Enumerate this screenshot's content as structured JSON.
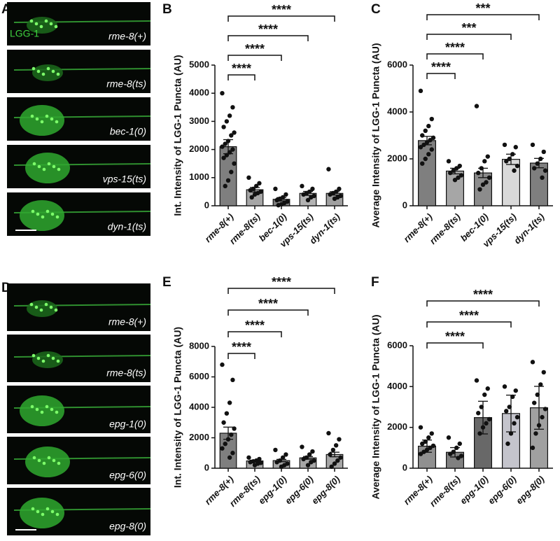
{
  "image_panels": [
    {
      "label": "A",
      "marker_label": "LGG-1",
      "captions": [
        "rme-8(+)",
        "rme-8(ts)",
        "bec-1(0)",
        "vps-15(ts)",
        "dyn-1(ts)"
      ]
    },
    {
      "label": "D",
      "captions": [
        "rme-8(+)",
        "rme-8(ts)",
        "epg-1(0)",
        "epg-6(0)",
        "epg-8(0)"
      ]
    }
  ],
  "chart_data": [
    {
      "panel": "B",
      "type": "bar",
      "y_label": "Int. Intensity of LGG-1 Puncta (AU)",
      "categories": [
        "rme-8(+)",
        "rme-8(ts)",
        "bec-1(0)",
        "vps-15(ts)",
        "dyn-1(ts)"
      ],
      "values": [
        2100,
        570,
        230,
        440,
        440
      ],
      "errors": [
        250,
        80,
        60,
        70,
        60
      ],
      "colors": [
        "#7f7f7f",
        "#a6a6a6",
        "#7f7f7f",
        "#b3b3b3",
        "#a0a0a0"
      ],
      "points": [
        [
          4000,
          3500,
          3200,
          3000,
          2800,
          2600,
          2500,
          2300,
          2200,
          2100,
          2000,
          1900,
          1800,
          1700,
          1500,
          1200,
          900,
          700
        ],
        [
          1000,
          800,
          700,
          600,
          550,
          500,
          450,
          400,
          300
        ],
        [
          600,
          400,
          300,
          250,
          200,
          150,
          100,
          50,
          20
        ],
        [
          700,
          600,
          500,
          450,
          400,
          350,
          300,
          200
        ],
        [
          1300,
          600,
          500,
          450,
          400,
          350,
          300,
          250
        ]
      ],
      "ylim": [
        0,
        5000
      ],
      "yticks": [
        0,
        1000,
        2000,
        3000,
        4000,
        5000
      ],
      "comparisons": [
        {
          "groups": [
            "rme-8(+)",
            "rme-8(ts)"
          ],
          "label": "****"
        },
        {
          "groups": [
            "rme-8(+)",
            "bec-1(0)"
          ],
          "label": "****"
        },
        {
          "groups": [
            "rme-8(+)",
            "vps-15(ts)"
          ],
          "label": "****"
        },
        {
          "groups": [
            "rme-8(+)",
            "dyn-1(ts)"
          ],
          "label": "****"
        }
      ]
    },
    {
      "panel": "C",
      "type": "bar",
      "y_label": "Average Intensity of LGG-1 Puncta (AU)",
      "categories": [
        "rme-8(+)",
        "rme-8(ts)",
        "bec-1(0)",
        "vps-15(ts)",
        "dyn-1(ts)"
      ],
      "values": [
        2780,
        1480,
        1400,
        1980,
        1820
      ],
      "errors": [
        180,
        120,
        200,
        220,
        200
      ],
      "colors": [
        "#7f7f7f",
        "#a6a6a6",
        "#8c8c8c",
        "#d9d9d9",
        "#7f7f7f"
      ],
      "points": [
        [
          4900,
          3700,
          3400,
          3200,
          3000,
          2900,
          2800,
          2700,
          2600,
          2500,
          2400,
          2200,
          2000,
          1800
        ],
        [
          1900,
          1700,
          1600,
          1500,
          1400,
          1300,
          1200,
          1100
        ],
        [
          4250,
          2100,
          1900,
          1600,
          1400,
          1200,
          1000,
          900,
          700
        ],
        [
          2600,
          2500,
          2200,
          2000,
          1900,
          1700,
          1500
        ],
        [
          2600,
          2300,
          2000,
          1800,
          1600,
          1500,
          1200
        ]
      ],
      "ylim": [
        0,
        6000
      ],
      "yticks": [
        0,
        2000,
        4000,
        6000
      ],
      "comparisons": [
        {
          "groups": [
            "rme-8(+)",
            "rme-8(ts)"
          ],
          "label": "****"
        },
        {
          "groups": [
            "rme-8(+)",
            "bec-1(0)"
          ],
          "label": "****"
        },
        {
          "groups": [
            "rme-8(+)",
            "vps-15(ts)"
          ],
          "label": "***"
        },
        {
          "groups": [
            "rme-8(+)",
            "dyn-1(ts)"
          ],
          "label": "***"
        }
      ]
    },
    {
      "panel": "E",
      "type": "bar",
      "y_label": "Int. Intensity of LGG-1 Puncta (AU)",
      "categories": [
        "rme-8(+)",
        "rme-8(ts)",
        "epg-1(0)",
        "epg-6(0)",
        "epg-8(0)"
      ],
      "values": [
        2300,
        480,
        500,
        680,
        900
      ],
      "errors": [
        400,
        50,
        80,
        90,
        150
      ],
      "colors": [
        "#7f7f7f",
        "#a6a6a6",
        "#a6a6a6",
        "#a6a6a6",
        "#a6a6a6"
      ],
      "points": [
        [
          6800,
          5800,
          4300,
          3600,
          3000,
          2600,
          2200,
          1900,
          1600,
          1300,
          1000,
          700
        ],
        [
          700,
          600,
          500,
          450,
          400,
          350,
          300,
          200
        ],
        [
          1200,
          900,
          700,
          500,
          400,
          300,
          200,
          100
        ],
        [
          1400,
          1100,
          900,
          700,
          600,
          500,
          400,
          200
        ],
        [
          2300,
          1900,
          1500,
          1200,
          900,
          700,
          500,
          300,
          100
        ]
      ],
      "ylim": [
        0,
        8000
      ],
      "yticks": [
        0,
        2000,
        4000,
        6000,
        8000
      ],
      "comparisons": [
        {
          "groups": [
            "rme-8(+)",
            "rme-8(ts)"
          ],
          "label": "****"
        },
        {
          "groups": [
            "rme-8(+)",
            "epg-1(0)"
          ],
          "label": "****"
        },
        {
          "groups": [
            "rme-8(+)",
            "epg-6(0)"
          ],
          "label": "****"
        },
        {
          "groups": [
            "rme-8(+)",
            "epg-8(0)"
          ],
          "label": "****"
        }
      ]
    },
    {
      "panel": "F",
      "type": "bar",
      "y_label": "Average Intensity of LGG-1 Puncta (AU)",
      "categories": [
        "rme-8(+)",
        "rme-8(ts)",
        "epg-1(0)",
        "epg-6(0)",
        "epg-8(0)"
      ],
      "values": [
        1080,
        780,
        2480,
        2680,
        2960
      ],
      "errors": [
        300,
        230,
        800,
        900,
        1050
      ],
      "colors": [
        "#909090",
        "#808080",
        "#686868",
        "#c4c4cc",
        "#a0a0a0"
      ],
      "points": [
        [
          2000,
          1700,
          1500,
          1300,
          1200,
          1100,
          1000,
          900,
          800,
          700
        ],
        [
          1500,
          1200,
          1000,
          800,
          700,
          600,
          500
        ],
        [
          4300,
          3900,
          3600,
          3000,
          2700,
          2400,
          2200,
          2000,
          1700
        ],
        [
          4000,
          3800,
          3500,
          3000,
          2800,
          2500,
          2200,
          1700,
          1200
        ],
        [
          5200,
          4700,
          4100,
          3600,
          3200,
          2900,
          2500,
          2100,
          1700,
          1000
        ]
      ],
      "ylim": [
        0,
        6000
      ],
      "yticks": [
        0,
        2000,
        4000,
        6000
      ],
      "comparisons": [
        {
          "groups": [
            "rme-8(+)",
            "epg-1(0)"
          ],
          "label": "****"
        },
        {
          "groups": [
            "rme-8(+)",
            "epg-6(0)"
          ],
          "label": "****"
        },
        {
          "groups": [
            "rme-8(+)",
            "epg-8(0)"
          ],
          "label": "****"
        }
      ]
    }
  ]
}
